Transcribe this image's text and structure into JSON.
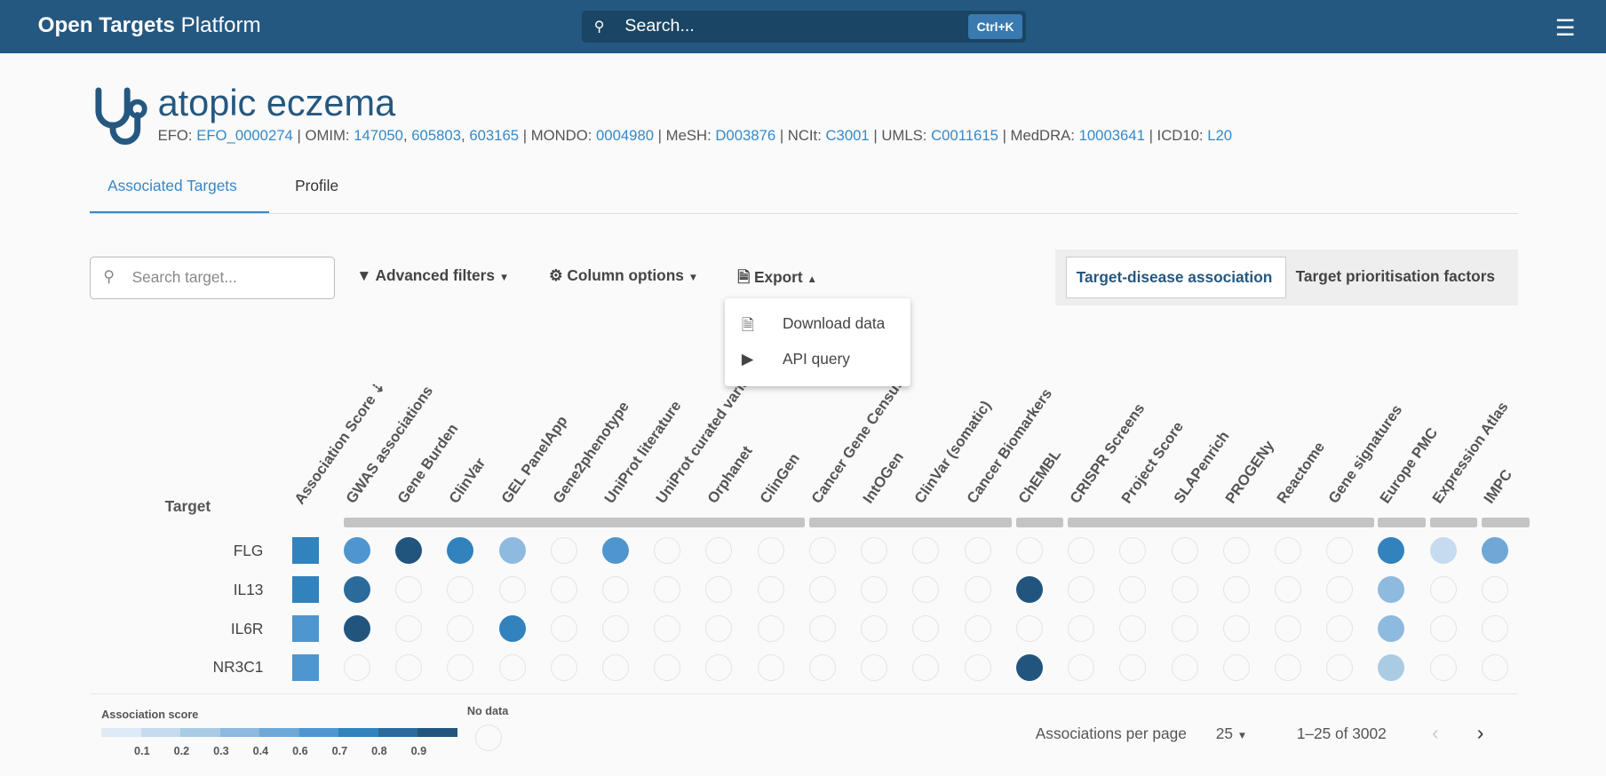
{
  "topbar": {
    "brand_bold": "Open Targets",
    "brand_rest": "Platform",
    "search_placeholder": "Search...",
    "shortcut": "Ctrl+K"
  },
  "disease": {
    "name": "atopic eczema",
    "xrefs": [
      {
        "label": "EFO: ",
        "ids": [
          "EFO_0000274"
        ]
      },
      {
        "label": "OMIM: ",
        "ids": [
          "147050",
          "605803",
          "603165"
        ]
      },
      {
        "label": "MONDO: ",
        "ids": [
          "0004980"
        ]
      },
      {
        "label": "MeSH: ",
        "ids": [
          "D003876"
        ]
      },
      {
        "label": "NCIt: ",
        "ids": [
          "C3001"
        ]
      },
      {
        "label": "UMLS: ",
        "ids": [
          "C0011615"
        ]
      },
      {
        "label": "MedDRA: ",
        "ids": [
          "10003641"
        ]
      },
      {
        "label": "ICD10: ",
        "ids": [
          "L20"
        ]
      }
    ]
  },
  "tabs": [
    {
      "label": "Associated Targets",
      "active": true
    },
    {
      "label": "Profile"
    }
  ],
  "toolbar": {
    "search_placeholder": "Search target...",
    "advanced_filters": "Advanced filters",
    "column_options": "Column options",
    "export": "Export",
    "toggle_a": "Target-disease association",
    "toggle_b": "Target prioritisation factors"
  },
  "export_menu": [
    "Download data",
    "API query"
  ],
  "table": {
    "target_header": "Target",
    "score_header": "Association Score",
    "columns": [
      "GWAS associations",
      "Gene Burden",
      "ClinVar",
      "GEL PanelApp",
      "Gene2phenotype",
      "UniProt literature",
      "UniProt curated variants",
      "Orphanet",
      "ClinGen",
      "Cancer Gene Census",
      "IntOGen",
      "ClinVar (somatic)",
      "Cancer Biomarkers",
      "ChEMBL",
      "CRISPR Screens",
      "Project Score",
      "SLAPenrich",
      "PROGENy",
      "Reactome",
      "Gene signatures",
      "Europe PMC",
      "Expression Atlas",
      "IMPC"
    ],
    "groups": [
      9,
      4,
      1,
      6,
      1,
      1,
      1
    ],
    "rows": [
      {
        "target": "FLG",
        "score": 0.7,
        "values": [
          0.6,
          0.95,
          0.7,
          0.3,
          null,
          0.6,
          null,
          null,
          null,
          null,
          null,
          null,
          null,
          null,
          null,
          null,
          null,
          null,
          null,
          null,
          0.7,
          0.1,
          0.4
        ]
      },
      {
        "target": "IL13",
        "score": 0.7,
        "values": [
          0.85,
          null,
          null,
          null,
          null,
          null,
          null,
          null,
          null,
          null,
          null,
          null,
          null,
          0.95,
          null,
          null,
          null,
          null,
          null,
          null,
          0.3,
          null,
          null
        ]
      },
      {
        "target": "IL6R",
        "score": 0.6,
        "values": [
          0.95,
          null,
          null,
          0.7,
          null,
          null,
          null,
          null,
          null,
          null,
          null,
          null,
          null,
          null,
          null,
          null,
          null,
          null,
          null,
          null,
          0.3,
          null,
          null
        ]
      },
      {
        "target": "NR3C1",
        "score": 0.6,
        "values": [
          null,
          null,
          null,
          null,
          null,
          null,
          null,
          null,
          null,
          null,
          null,
          null,
          null,
          0.95,
          null,
          null,
          null,
          null,
          null,
          null,
          0.2,
          null,
          null
        ]
      }
    ]
  },
  "legend": {
    "title": "Association score",
    "ticks": [
      "0.1",
      "0.2",
      "0.3",
      "0.4",
      "0.6",
      "0.7",
      "0.8",
      "0.9"
    ],
    "no_data": "No data",
    "colors": [
      "#deebf7",
      "#c6dbef",
      "#a9cce4",
      "#8dbade",
      "#6fa8d6",
      "#4f96cf",
      "#3182bd",
      "#2a6b9c",
      "#22557e"
    ]
  },
  "pagination": {
    "per_page_label": "Associations per page",
    "per_page": "25",
    "range": "1–25 of 3002"
  }
}
